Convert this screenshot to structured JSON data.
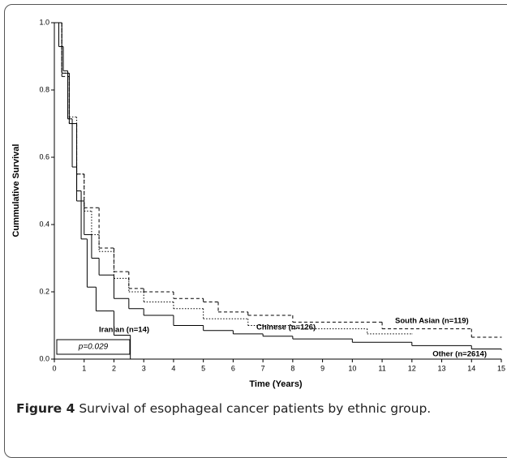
{
  "chart_data": {
    "type": "line",
    "drawstyle": "steps-post",
    "ylabel": "Cummulative Survival",
    "xlabel": "Time (Years)",
    "xlim": [
      0,
      15
    ],
    "xticks": [
      0,
      1,
      2,
      3,
      4,
      5,
      6,
      7,
      8,
      9,
      10,
      11,
      12,
      13,
      14,
      15
    ],
    "ylim": [
      0,
      1
    ],
    "yticks": [
      {
        "value": 0,
        "label": "0.0"
      },
      0.2,
      0.4,
      0.6,
      0.8,
      {
        "value": 1,
        "label": "1.0"
      }
    ],
    "annotation": "p=0.029",
    "series": [
      {
        "name": "Iranian (n=14)",
        "color": "#000000",
        "dash": "solid",
        "x": [
          0,
          0.15,
          0.3,
          0.45,
          0.6,
          0.75,
          0.9,
          1.1,
          1.4,
          2.0,
          2.55
        ],
        "values": [
          1,
          0.929,
          0.857,
          0.714,
          0.571,
          0.5,
          0.357,
          0.214,
          0.143,
          0.071,
          0
        ]
      },
      {
        "name": "Chinese (n=126)",
        "color": "#000000",
        "dash": "dotted",
        "x": [
          0,
          0.25,
          0.5,
          0.75,
          1,
          1.25,
          1.5,
          2,
          2.5,
          3,
          4,
          5,
          6.5,
          8,
          10.5,
          12
        ],
        "values": [
          1,
          0.85,
          0.72,
          0.55,
          0.44,
          0.37,
          0.32,
          0.24,
          0.2,
          0.17,
          0.15,
          0.12,
          0.1,
          0.09,
          0.075,
          0.075
        ]
      },
      {
        "name": "South Asian (n=119)",
        "color": "#000000",
        "dash": "dashed",
        "x": [
          0,
          0.25,
          0.5,
          0.75,
          1,
          1.5,
          2,
          2.5,
          3,
          4,
          5,
          5.5,
          6.5,
          8,
          10.7,
          11,
          14,
          15
        ],
        "values": [
          1,
          0.84,
          0.7,
          0.55,
          0.45,
          0.33,
          0.26,
          0.21,
          0.2,
          0.18,
          0.17,
          0.14,
          0.13,
          0.11,
          0.11,
          0.09,
          0.065,
          0.065
        ]
      },
      {
        "name": "Other (n=2614)",
        "color": "#000000",
        "dash": "solid",
        "x": [
          0,
          0.25,
          0.5,
          0.75,
          1,
          1.25,
          1.5,
          2,
          2.5,
          3,
          4,
          5,
          6,
          7,
          8,
          10,
          12,
          14,
          15
        ],
        "values": [
          1,
          0.85,
          0.7,
          0.47,
          0.37,
          0.3,
          0.25,
          0.18,
          0.15,
          0.13,
          0.1,
          0.085,
          0.075,
          0.068,
          0.06,
          0.05,
          0.04,
          0.03,
          0.028
        ]
      }
    ]
  },
  "caption": {
    "label": "Figure 4",
    "text": "Survival of esophageal cancer patients by ethnic group."
  }
}
